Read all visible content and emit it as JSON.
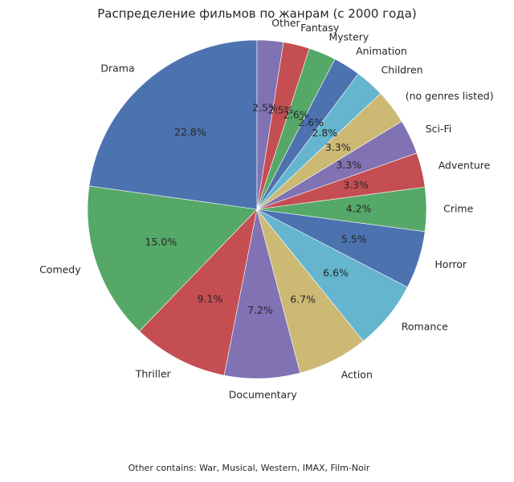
{
  "chart_data": {
    "type": "pie",
    "title": "Распределение фильмов по жанрам (с 2000 года)",
    "footnote": "Other contains: War, Musical, Western, IMAX, Film-Noir",
    "slices": [
      {
        "label": "Drama",
        "value": 22.8,
        "pct_label": "22.8%",
        "color": "#4c72b0"
      },
      {
        "label": "Comedy",
        "value": 15.0,
        "pct_label": "15.0%",
        "color": "#55a868"
      },
      {
        "label": "Thriller",
        "value": 9.1,
        "pct_label": "9.1%",
        "color": "#c44e52"
      },
      {
        "label": "Documentary",
        "value": 7.2,
        "pct_label": "7.2%",
        "color": "#8172b3"
      },
      {
        "label": "Action",
        "value": 6.7,
        "pct_label": "6.7%",
        "color": "#ccb974"
      },
      {
        "label": "Romance",
        "value": 6.6,
        "pct_label": "6.6%",
        "color": "#64b5cd"
      },
      {
        "label": "Horror",
        "value": 5.5,
        "pct_label": "5.5%",
        "color": "#4c72b0"
      },
      {
        "label": "Crime",
        "value": 4.2,
        "pct_label": "4.2%",
        "color": "#55a868"
      },
      {
        "label": "Adventure",
        "value": 3.3,
        "pct_label": "3.3%",
        "color": "#c44e52"
      },
      {
        "label": "Sci-Fi",
        "value": 3.3,
        "pct_label": "3.3%",
        "color": "#8172b3"
      },
      {
        "label": "(no genres listed)",
        "value": 3.3,
        "pct_label": "3.3%",
        "color": "#ccb974"
      },
      {
        "label": "Children",
        "value": 2.8,
        "pct_label": "2.8%",
        "color": "#64b5cd"
      },
      {
        "label": "Animation",
        "value": 2.6,
        "pct_label": "2.6%",
        "color": "#4c72b0"
      },
      {
        "label": "Mystery",
        "value": 2.6,
        "pct_label": "2.6%",
        "color": "#55a868"
      },
      {
        "label": "Fantasy",
        "value": 2.5,
        "pct_label": "2.5%",
        "color": "#c44e52"
      },
      {
        "label": "Other",
        "value": 2.5,
        "pct_label": "2.5%",
        "color": "#8172b3"
      }
    ],
    "start_angle_deg": 90,
    "direction": "counterclockwise"
  }
}
